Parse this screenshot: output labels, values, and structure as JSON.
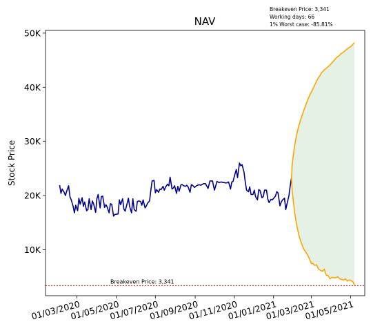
{
  "chart_data": {
    "type": "line",
    "title": "NAV",
    "xlabel": "",
    "ylabel": "Stock Price",
    "xlim": [
      "2020-01-12",
      "2021-05-23"
    ],
    "ylim": [
      1500,
      50500
    ],
    "yticks": [
      10000,
      20000,
      30000,
      40000,
      50000
    ],
    "ytick_labels": [
      "10K",
      "20K",
      "30K",
      "40K",
      "50K"
    ],
    "xticks": [
      "2020-03-01",
      "2020-05-01",
      "2020-07-01",
      "2020-09-01",
      "2020-11-01",
      "2021-01-01",
      "2021-03-01",
      "2021-05-01"
    ],
    "xtick_labels": [
      "01/03/2020",
      "01/05/2020",
      "01/07/2020",
      "01/09/2020",
      "01/11/2020",
      "01/01/2021",
      "01/03/2021",
      "01/05/2021"
    ],
    "info_lines": [
      "Breakeven Price: 3,341",
      "Working days: 66",
      "1% Worst case: -85.81%"
    ],
    "breakeven": {
      "value": 3341,
      "label": "Breakeven Price: 3,341",
      "color": "#ff0000"
    },
    "series": [
      {
        "kind": "history",
        "color": "#00008b",
        "x": [
          "2020-02-03",
          "2020-02-05",
          "2020-02-07",
          "2020-02-10",
          "2020-02-12",
          "2020-02-14",
          "2020-02-17",
          "2020-02-19",
          "2020-02-21",
          "2020-02-24",
          "2020-02-26",
          "2020-02-28",
          "2020-03-02",
          "2020-03-04",
          "2020-03-06",
          "2020-03-09",
          "2020-03-11",
          "2020-03-13",
          "2020-03-16",
          "2020-03-18",
          "2020-03-20",
          "2020-03-23",
          "2020-03-25",
          "2020-03-27",
          "2020-03-30",
          "2020-04-01",
          "2020-04-03",
          "2020-04-06",
          "2020-04-08",
          "2020-04-10",
          "2020-04-13",
          "2020-04-15",
          "2020-04-17",
          "2020-04-20",
          "2020-04-22",
          "2020-04-24",
          "2020-04-27",
          "2020-04-29",
          "2020-05-04",
          "2020-05-06",
          "2020-05-08",
          "2020-05-11",
          "2020-05-13",
          "2020-05-15",
          "2020-05-18",
          "2020-05-20",
          "2020-05-22",
          "2020-05-25",
          "2020-05-27",
          "2020-05-29",
          "2020-06-01",
          "2020-06-03",
          "2020-06-05",
          "2020-06-08",
          "2020-06-10",
          "2020-06-12",
          "2020-06-15",
          "2020-06-17",
          "2020-06-19",
          "2020-06-22",
          "2020-06-24",
          "2020-06-26",
          "2020-06-29",
          "2020-07-01",
          "2020-07-03",
          "2020-07-06",
          "2020-07-08",
          "2020-07-10",
          "2020-07-13",
          "2020-07-15",
          "2020-07-17",
          "2020-07-20",
          "2020-07-22",
          "2020-07-24",
          "2020-07-27",
          "2020-07-29",
          "2020-07-31",
          "2020-08-03",
          "2020-08-05",
          "2020-08-07",
          "2020-08-10",
          "2020-08-12",
          "2020-08-14",
          "2020-08-17",
          "2020-08-19",
          "2020-08-21",
          "2020-08-24",
          "2020-08-26",
          "2020-08-28",
          "2020-08-31",
          "2020-09-03",
          "2020-09-07",
          "2020-09-10",
          "2020-09-14",
          "2020-09-17",
          "2020-09-21",
          "2020-09-24",
          "2020-09-28",
          "2020-10-01",
          "2020-10-05",
          "2020-10-08",
          "2020-10-12",
          "2020-10-14",
          "2020-10-16",
          "2020-10-19",
          "2020-10-21",
          "2020-10-23",
          "2020-10-26",
          "2020-10-28",
          "2020-10-30",
          "2020-11-02",
          "2020-11-04",
          "2020-11-06",
          "2020-11-09",
          "2020-11-11",
          "2020-11-13",
          "2020-11-16",
          "2020-11-18",
          "2020-11-20",
          "2020-11-23",
          "2020-11-25",
          "2020-11-27",
          "2020-11-30",
          "2020-12-02",
          "2020-12-04",
          "2020-12-07",
          "2020-12-09",
          "2020-12-11",
          "2020-12-14",
          "2020-12-16",
          "2020-12-18",
          "2020-12-21",
          "2020-12-23",
          "2020-12-25",
          "2020-12-28",
          "2020-12-30",
          "2021-01-04",
          "2021-01-06",
          "2021-01-08",
          "2021-01-11",
          "2021-01-13",
          "2021-01-15",
          "2021-01-18",
          "2021-01-20",
          "2021-01-22",
          "2021-01-25",
          "2021-01-27",
          "2021-01-29"
        ],
        "y": [
          21900,
          20400,
          21200,
          20600,
          20000,
          20800,
          21800,
          19800,
          19200,
          18000,
          16800,
          18200,
          17200,
          19500,
          18400,
          19600,
          18000,
          18800,
          17200,
          17400,
          19400,
          17400,
          19000,
          18400,
          16900,
          19400,
          20200,
          17700,
          19800,
          19900,
          17800,
          18300,
          17900,
          16800,
          18500,
          18400,
          16200,
          16500,
          16600,
          19200,
          18300,
          19400,
          17500,
          17100,
          18500,
          19500,
          18000,
          16800,
          19400,
          17400,
          17100,
          18900,
          19000,
          18900,
          18200,
          19200,
          17700,
          18100,
          18600,
          19000,
          21000,
          22700,
          22800,
          20500,
          21100,
          20600,
          21200,
          21100,
          21700,
          21000,
          21600,
          22100,
          21800,
          23400,
          21200,
          21400,
          21800,
          20400,
          21700,
          20800,
          22000,
          22000,
          21800,
          21700,
          21900,
          21600,
          20600,
          22000,
          21900,
          21500,
          21800,
          22000,
          21900,
          22200,
          22200,
          21300,
          22700,
          22700,
          21000,
          22600,
          22400,
          22500,
          22400,
          22400,
          22300,
          22400,
          22500,
          21200,
          22500,
          22600,
          24000,
          24800,
          23300,
          26000,
          25500,
          25700,
          24300,
          22500,
          21000,
          20700,
          21600,
          20200,
          20200,
          21000,
          19800,
          19200,
          21100,
          20900,
          19600,
          19800,
          21000,
          21000,
          19400,
          18700,
          19300,
          19200,
          19900,
          20700,
          20500,
          18100,
          18800,
          19200,
          19500,
          17400,
          18500,
          20000,
          21800,
          23300
        ]
      },
      {
        "kind": "best-case",
        "color": "#ffa500",
        "x": [
          "2021-01-29",
          "2021-01-30",
          "2021-01-31",
          "2021-02-02",
          "2021-02-04",
          "2021-02-06",
          "2021-02-09",
          "2021-02-12",
          "2021-02-15",
          "2021-02-18",
          "2021-02-21",
          "2021-02-24",
          "2021-02-27",
          "2021-03-02",
          "2021-03-05",
          "2021-03-08",
          "2021-03-11",
          "2021-03-14",
          "2021-03-17",
          "2021-03-20",
          "2021-03-23",
          "2021-03-26",
          "2021-03-29",
          "2021-04-01",
          "2021-04-04",
          "2021-04-07",
          "2021-04-10",
          "2021-04-13",
          "2021-04-16",
          "2021-04-19",
          "2021-04-22",
          "2021-04-25",
          "2021-04-28",
          "2021-05-01",
          "2021-05-03",
          "2021-05-05",
          "2021-05-07"
        ],
        "y": [
          23300,
          25600,
          26700,
          28500,
          30000,
          31300,
          32700,
          33900,
          35000,
          36000,
          37000,
          37900,
          38700,
          39400,
          40100,
          40900,
          41600,
          42100,
          42700,
          43100,
          43400,
          43700,
          44000,
          44400,
          44800,
          45200,
          45600,
          45800,
          46200,
          46400,
          46700,
          47000,
          47300,
          47500,
          47700,
          48000,
          48200
        ]
      },
      {
        "kind": "worst-case",
        "color": "#ffa500",
        "x": [
          "2021-01-29",
          "2021-01-30",
          "2021-02-01",
          "2021-02-03",
          "2021-02-05",
          "2021-02-07",
          "2021-02-09",
          "2021-02-11",
          "2021-02-14",
          "2021-02-17",
          "2021-02-20",
          "2021-02-23",
          "2021-02-26",
          "2021-03-01",
          "2021-03-03",
          "2021-03-06",
          "2021-03-09",
          "2021-03-12",
          "2021-03-15",
          "2021-03-18",
          "2021-03-21",
          "2021-03-24",
          "2021-03-27",
          "2021-03-30",
          "2021-04-02",
          "2021-04-05",
          "2021-04-08",
          "2021-04-11",
          "2021-04-14",
          "2021-04-17",
          "2021-04-20",
          "2021-04-23",
          "2021-04-26",
          "2021-04-29",
          "2021-05-02",
          "2021-05-05",
          "2021-05-07"
        ],
        "y": [
          23300,
          21000,
          18700,
          16700,
          15300,
          14000,
          12900,
          12000,
          11000,
          10100,
          9600,
          9000,
          8300,
          7400,
          7500,
          7100,
          7200,
          6400,
          6200,
          6000,
          6400,
          5300,
          5200,
          4600,
          4900,
          4800,
          4800,
          5000,
          4600,
          4500,
          4400,
          4600,
          4200,
          4400,
          4300,
          4000,
          3400
        ]
      }
    ]
  }
}
